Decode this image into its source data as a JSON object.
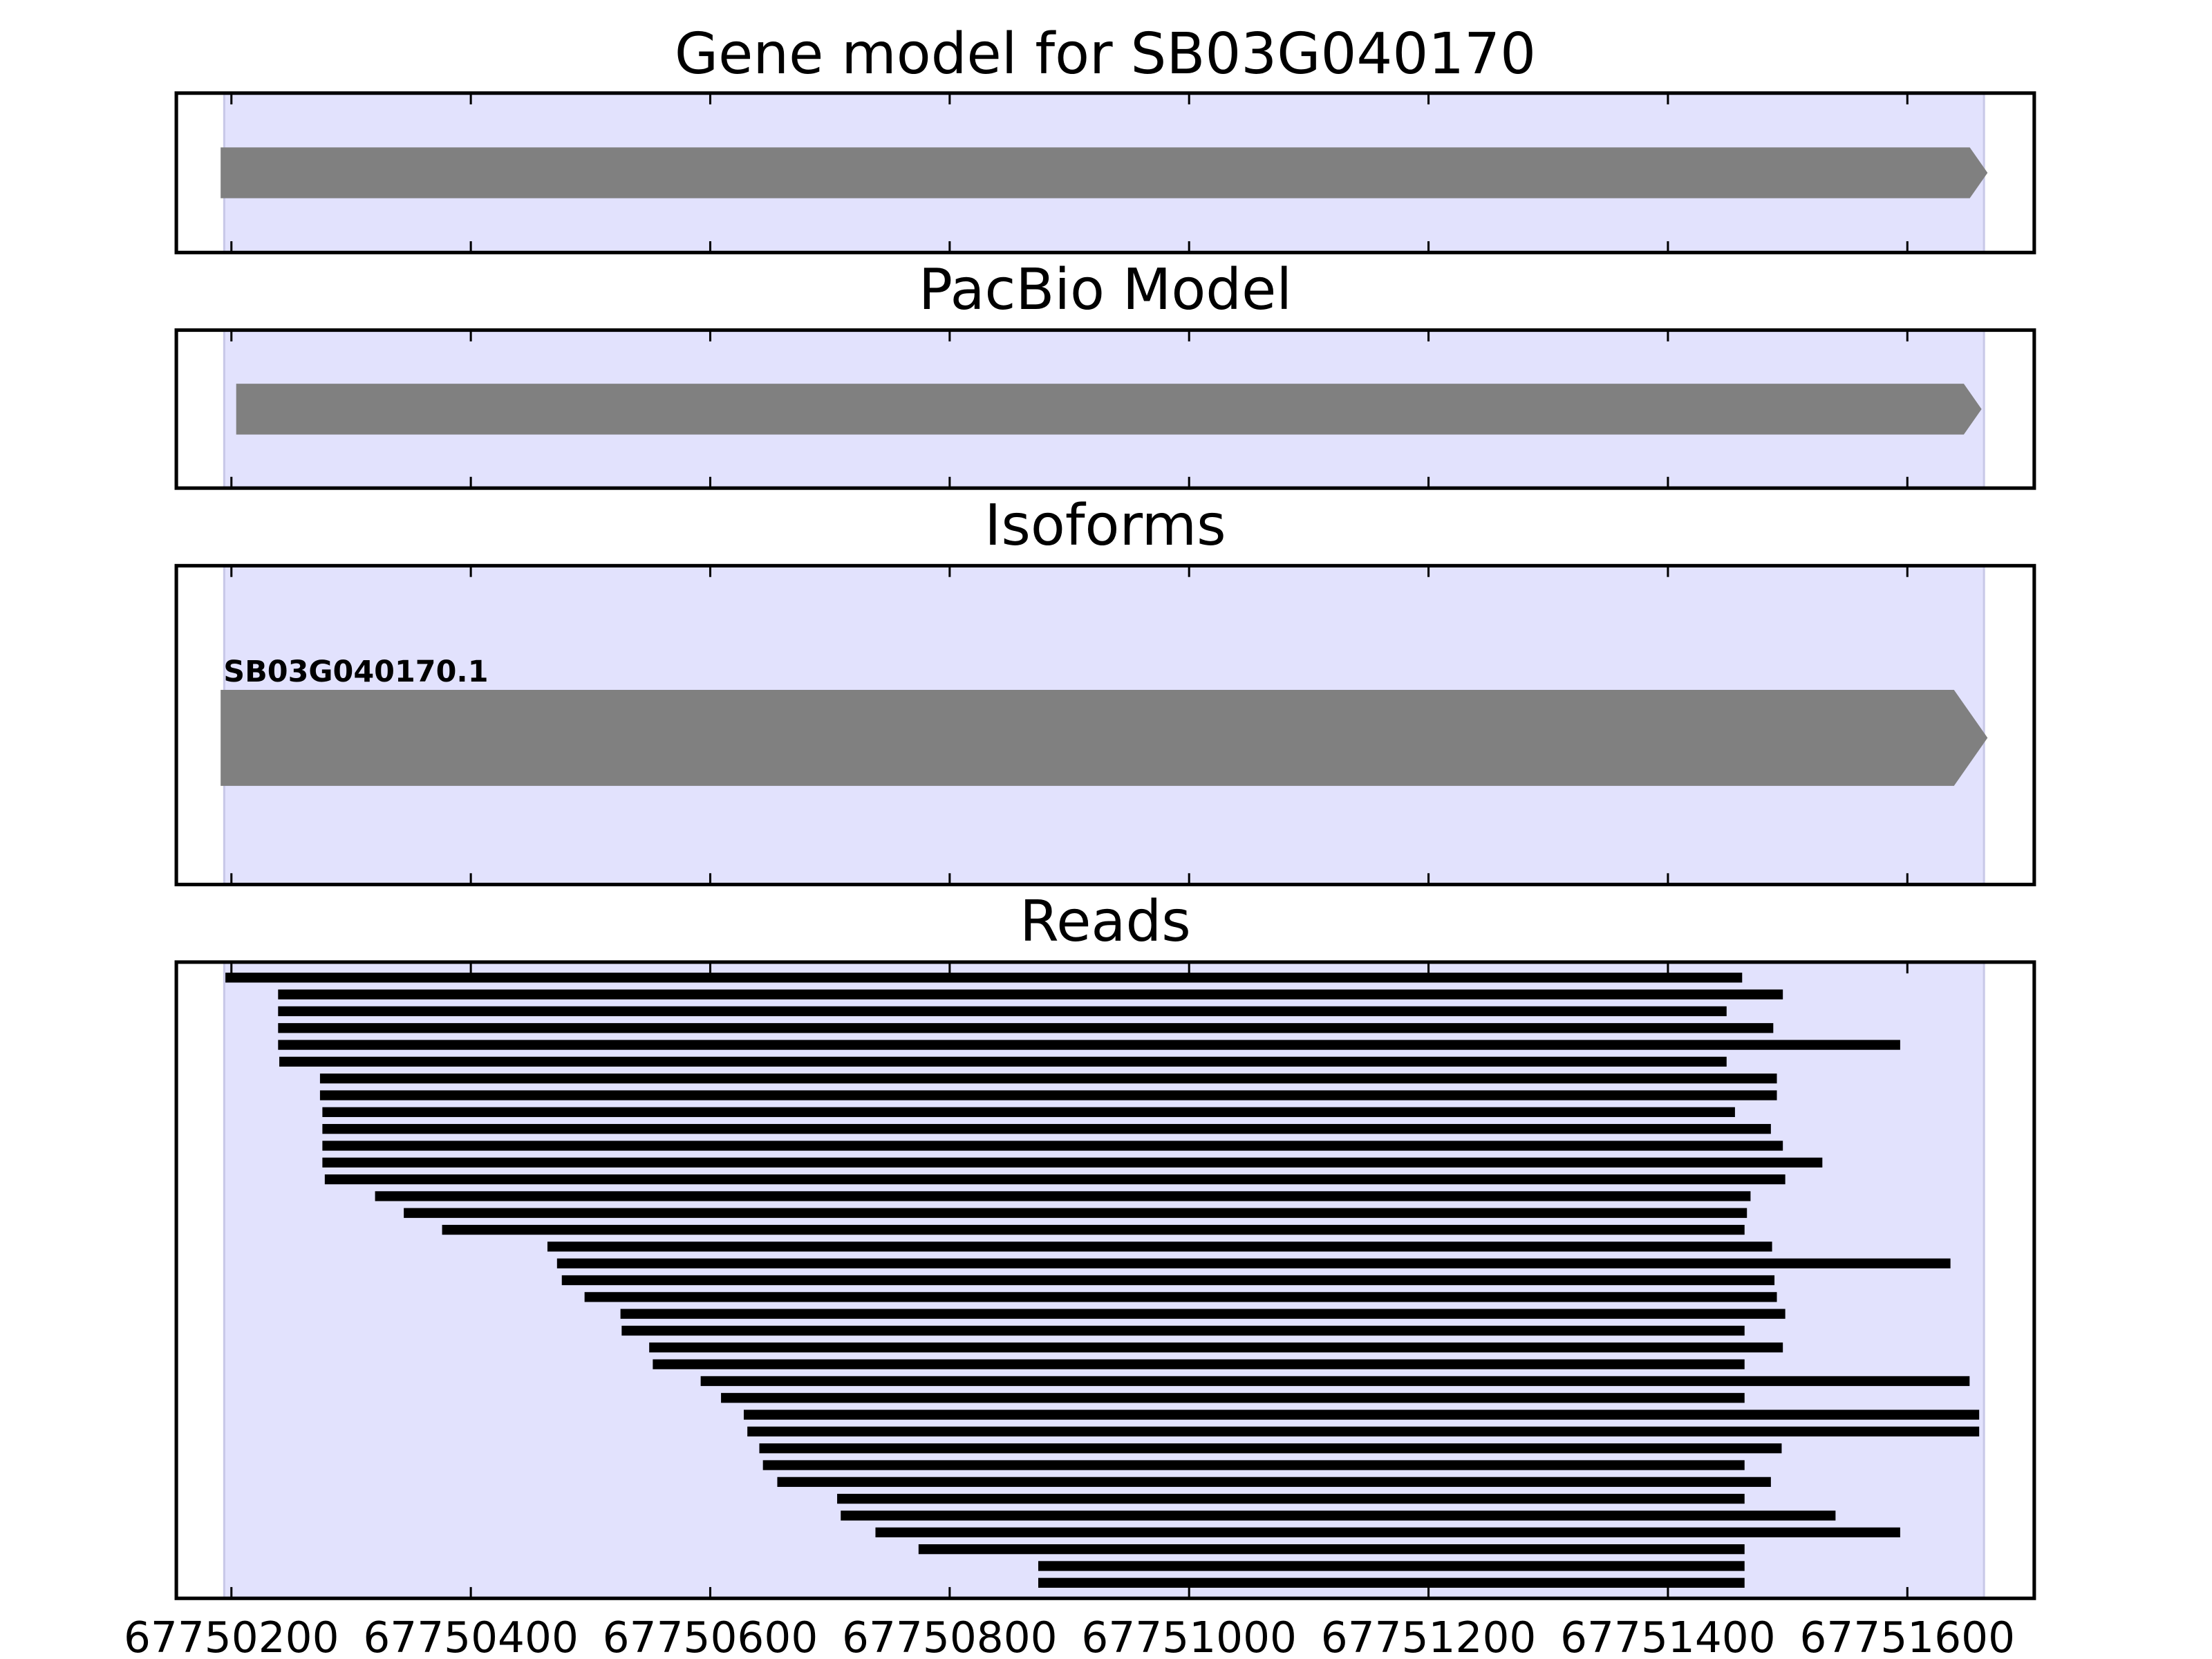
{
  "chart_data": [
    {
      "type": "gene-track",
      "title": "Gene model for SB03G040170",
      "xlim": [
        67750154,
        67751706
      ],
      "highlight": [
        67750194,
        67751664
      ],
      "highlight_color": "#e2e2fd",
      "color": "#808080",
      "features": [
        {
          "start": 67750191,
          "end": 67751667
        }
      ]
    },
    {
      "type": "gene-track",
      "title": "PacBio Model",
      "xlim": [
        67750154,
        67751706
      ],
      "highlight": [
        67750194,
        67751664
      ],
      "highlight_color": "#e2e2fd",
      "color": "#808080",
      "features": [
        {
          "start": 67750204,
          "end": 67751662
        }
      ]
    },
    {
      "type": "gene-track",
      "title": "Isoforms",
      "xlim": [
        67750154,
        67751706
      ],
      "highlight": [
        67750194,
        67751664
      ],
      "highlight_color": "#e2e2fd",
      "color": "#808080",
      "features": [
        {
          "start": 67750191,
          "end": 67751667,
          "label": "SB03G040170.1"
        }
      ]
    },
    {
      "type": "reads",
      "title": "Reads",
      "xlim": [
        67750154,
        67751706
      ],
      "highlight": [
        67750194,
        67751664
      ],
      "highlight_color": "#e2e2fd",
      "color": "#000000",
      "xticks": [
        67750200,
        67750400,
        67750600,
        67750800,
        67751000,
        67751200,
        67751400,
        67751600
      ],
      "starts": [
        67750195,
        67750239,
        67750239,
        67750239,
        67750239,
        67750240,
        67750274,
        67750274,
        67750276,
        67750276,
        67750276,
        67750276,
        67750278,
        67750320,
        67750344,
        67750376,
        67750464,
        67750472,
        67750476,
        67750495,
        67750525,
        67750526,
        67750549,
        67750552,
        67750592,
        67750609,
        67750628,
        67750631,
        67750641,
        67750644,
        67750656,
        67750706,
        67750709,
        67750738,
        67750774,
        67750874,
        67750874
      ],
      "ends": [
        67751462,
        67751496,
        67751449,
        67751488,
        67751594,
        67751449,
        67751491,
        67751491,
        67751456,
        67751486,
        67751496,
        67751529,
        67751498,
        67751469,
        67751466,
        67751464,
        67751487,
        67751636,
        67751489,
        67751491,
        67751498,
        67751464,
        67751496,
        67751464,
        67751652,
        67751464,
        67751660,
        67751660,
        67751495,
        67751464,
        67751486,
        67751464,
        67751540,
        67751594,
        67751464,
        67751464,
        67751464
      ]
    }
  ]
}
